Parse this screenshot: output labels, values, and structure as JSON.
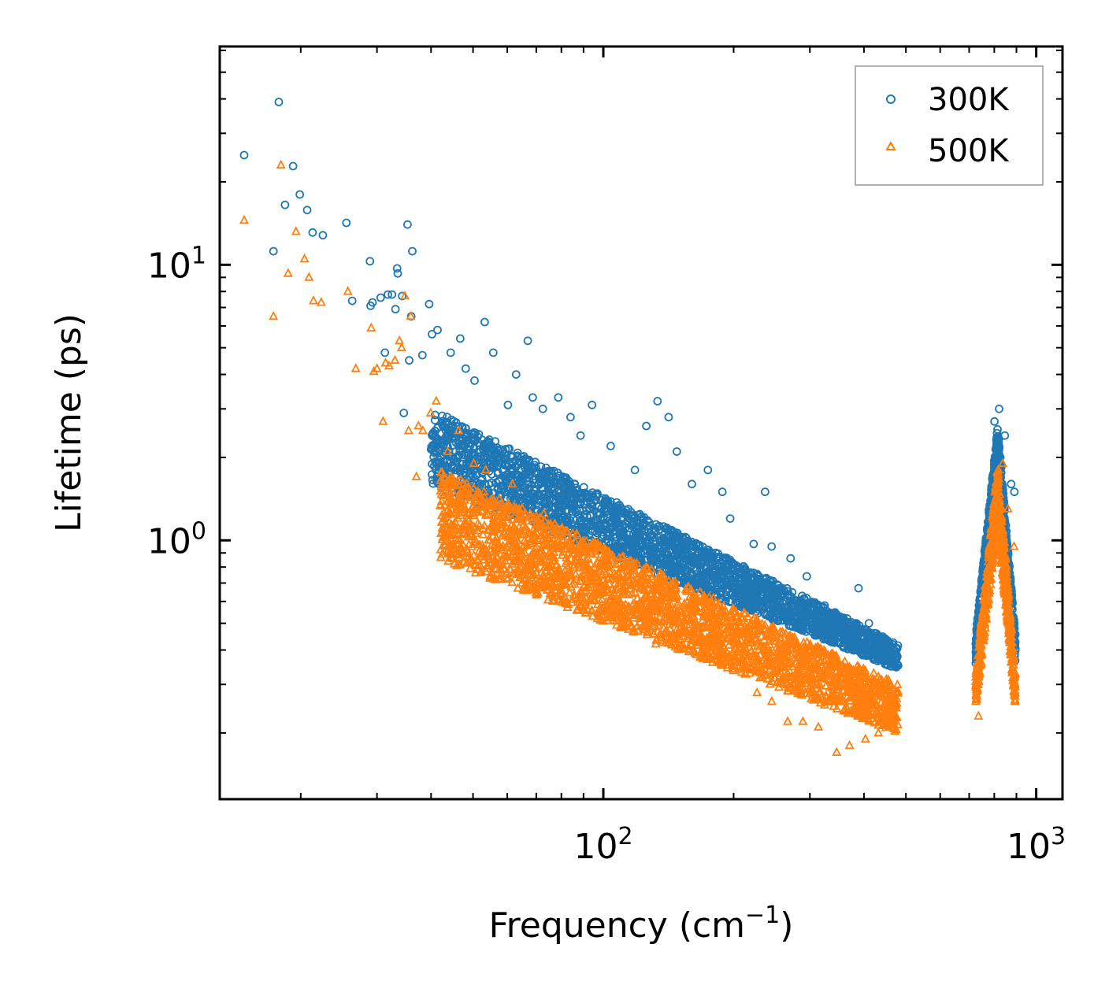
{
  "chart_data": {
    "type": "scatter",
    "title": "",
    "xlabel": "Frequency (cm",
    "xlabel_sup": "−1",
    "xlabel_end": ")",
    "ylabel": "Lifetime (ps)",
    "xscale": "log",
    "yscale": "log",
    "xlim": [
      13,
      1150
    ],
    "ylim": [
      0.115,
      62
    ],
    "x_ticks": [
      {
        "value": 100,
        "base": "10",
        "exp": "2"
      },
      {
        "value": 1000,
        "base": "10",
        "exp": "3"
      }
    ],
    "y_ticks": [
      {
        "value": 1,
        "base": "10",
        "exp": "0"
      },
      {
        "value": 10,
        "base": "10",
        "exp": "1"
      }
    ],
    "legend_position": "top-right",
    "series": [
      {
        "name": "300K",
        "marker": "circle",
        "color": "#1f77b4",
        "points": [
          [
            14.8,
            25
          ],
          [
            17.3,
            11.2
          ],
          [
            17.8,
            39
          ],
          [
            18.4,
            16.5
          ],
          [
            19.2,
            22.8
          ],
          [
            19.9,
            18
          ],
          [
            20.7,
            15.8
          ],
          [
            21.3,
            13.1
          ],
          [
            22.5,
            12.8
          ],
          [
            25.5,
            14.2
          ],
          [
            26.3,
            7.4
          ],
          [
            28.9,
            10.3
          ],
          [
            29.0,
            7.1
          ],
          [
            29.3,
            7.3
          ],
          [
            30.6,
            7.6
          ],
          [
            31.3,
            4.8
          ],
          [
            31.8,
            7.8
          ],
          [
            32.5,
            7.8
          ],
          [
            33.1,
            6.9
          ],
          [
            33.4,
            9.7
          ],
          [
            33.5,
            9.3
          ],
          [
            34.3,
            7.7
          ],
          [
            34.6,
            2.9
          ],
          [
            35.3,
            14
          ],
          [
            35.6,
            4.5
          ],
          [
            36.2,
            11.2
          ],
          [
            36.0,
            6.5
          ],
          [
            38.2,
            4.7
          ],
          [
            39.6,
            7.2
          ],
          [
            40.2,
            5.6
          ],
          [
            41.4,
            5.8
          ],
          [
            44.4,
            4.8
          ],
          [
            46.7,
            5.4
          ],
          [
            48.1,
            4.2
          ],
          [
            50.4,
            3.8
          ],
          [
            53.2,
            6.2
          ],
          [
            55.7,
            4.8
          ],
          [
            60.2,
            3.1
          ],
          [
            62.9,
            4.0
          ],
          [
            66.9,
            5.3
          ],
          [
            68.7,
            3.3
          ],
          [
            72.5,
            3.0
          ],
          [
            78.7,
            3.3
          ],
          [
            84.0,
            2.8
          ],
          [
            88.6,
            2.4
          ],
          [
            94.2,
            3.1
          ],
          [
            104.0,
            2.2
          ],
          [
            118.3,
            1.8
          ],
          [
            125.7,
            2.6
          ],
          [
            133.4,
            3.2
          ],
          [
            141.5,
            2.8
          ],
          [
            147.8,
            2.1
          ],
          [
            160.2,
            1.6
          ],
          [
            174.4,
            1.8
          ],
          [
            188.3,
            1.5
          ],
          [
            196.4,
            1.2
          ],
          [
            236.4,
            1.5
          ],
          [
            222.5,
            0.97
          ],
          [
            244.8,
            0.95
          ],
          [
            270.8,
            0.86
          ],
          [
            295.1,
            0.74
          ],
          [
            324.5,
            0.58
          ],
          [
            350.0,
            0.52
          ],
          [
            388.6,
            0.67
          ],
          [
            410.7,
            0.5
          ],
          [
            445.3,
            0.43
          ],
          [
            470.7,
            0.35
          ],
          [
            735.1,
            0.55
          ],
          [
            800.6,
            2.7
          ],
          [
            820.7,
            3.0
          ],
          [
            845.8,
            2.4
          ],
          [
            875.2,
            1.6
          ],
          [
            890.4,
            1.5
          ]
        ]
      },
      {
        "name": "500K",
        "marker": "triangle",
        "color": "#ff7f0e",
        "points": [
          [
            14.8,
            14.5
          ],
          [
            17.3,
            6.5
          ],
          [
            18.0,
            23
          ],
          [
            18.7,
            9.3
          ],
          [
            19.5,
            13.2
          ],
          [
            20.4,
            10.5
          ],
          [
            20.9,
            9.0
          ],
          [
            21.4,
            7.4
          ],
          [
            22.3,
            7.3
          ],
          [
            25.7,
            8.0
          ],
          [
            26.8,
            4.2
          ],
          [
            29.1,
            5.9
          ],
          [
            29.5,
            4.1
          ],
          [
            30.0,
            4.2
          ],
          [
            31.4,
            4.4
          ],
          [
            31.0,
            2.7
          ],
          [
            32.0,
            4.3
          ],
          [
            33.0,
            4.5
          ],
          [
            33.8,
            5.3
          ],
          [
            34.2,
            5.0
          ],
          [
            34.8,
            7.7
          ],
          [
            35.5,
            2.5
          ],
          [
            35.9,
            6.5
          ],
          [
            37.4,
            2.6
          ],
          [
            37.0,
            1.7
          ],
          [
            38.3,
            2.5
          ],
          [
            39.9,
            2.9
          ],
          [
            41.1,
            3.2
          ],
          [
            42.1,
            1.65
          ],
          [
            43.7,
            2.1
          ],
          [
            46.3,
            2.5
          ],
          [
            47.5,
            1.35
          ],
          [
            49.6,
            1.1
          ],
          [
            50.2,
            1.9
          ],
          [
            53.5,
            1.8
          ],
          [
            55.8,
            1.2
          ],
          [
            61.6,
            1.6
          ],
          [
            65.0,
            1.3
          ],
          [
            68.3,
            0.73
          ],
          [
            72.9,
            1.25
          ],
          [
            78.4,
            1.1
          ],
          [
            84.3,
            0.74
          ],
          [
            89.9,
            0.8
          ],
          [
            97.1,
            0.83
          ],
          [
            108.5,
            0.7
          ],
          [
            119.4,
            0.68
          ],
          [
            126.9,
            0.62
          ],
          [
            132.1,
            0.42
          ],
          [
            145.5,
            0.52
          ],
          [
            157.0,
            0.45
          ],
          [
            174.1,
            0.53
          ],
          [
            190.3,
            0.39
          ],
          [
            208.0,
            0.34
          ],
          [
            226.5,
            0.28
          ],
          [
            244.9,
            0.26
          ],
          [
            266.6,
            0.22
          ],
          [
            289.1,
            0.22
          ],
          [
            313.9,
            0.21
          ],
          [
            345.8,
            0.17
          ],
          [
            370.4,
            0.18
          ],
          [
            403.1,
            0.19
          ],
          [
            431.9,
            0.2
          ],
          [
            465.6,
            0.21
          ],
          [
            733.9,
            0.3
          ],
          [
            735.5,
            0.23
          ],
          [
            790.1,
            1.0
          ],
          [
            817.5,
            1.8
          ],
          [
            836.4,
            1.9
          ],
          [
            860.1,
            1.3
          ],
          [
            888.5,
            0.95
          ]
        ]
      }
    ],
    "bands": [
      {
        "series": "300K",
        "x_start": 40,
        "x_end": 480,
        "y_hi_start": 3.0,
        "y_hi_end": 0.42,
        "y_lo_start": 1.6,
        "y_lo_end": 0.34
      },
      {
        "series": "500K",
        "x_start": 42,
        "x_end": 480,
        "y_hi_start": 1.8,
        "y_hi_end": 0.3,
        "y_lo_start": 0.85,
        "y_lo_end": 0.2
      },
      {
        "series": "300K",
        "x_start": 725,
        "x_end": 895,
        "peak_x": 815,
        "y_hi_peak": 2.6,
        "y_lo_peak": 1.9,
        "y_lo_ends": 0.35
      },
      {
        "series": "500K",
        "x_start": 725,
        "x_end": 895,
        "peak_x": 815,
        "y_hi_peak": 1.9,
        "y_lo_peak": 1.1,
        "y_lo_ends": 0.25
      }
    ]
  }
}
